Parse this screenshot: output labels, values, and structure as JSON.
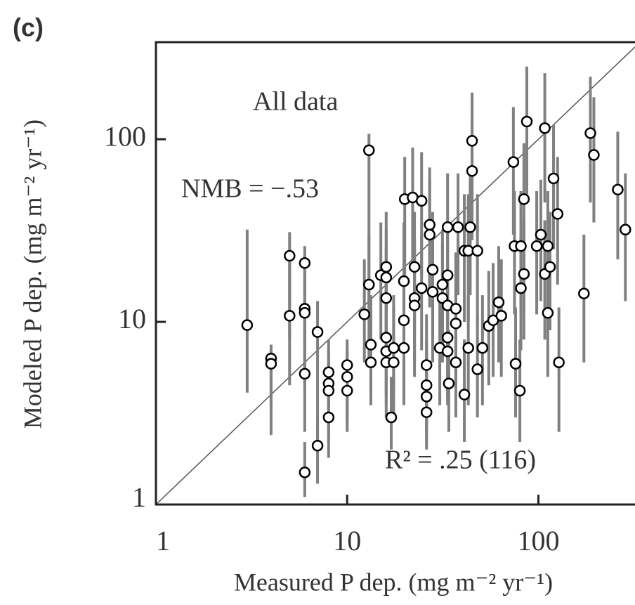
{
  "chart_data": {
    "type": "scatter",
    "panel_label": "(c)",
    "xlabel": "Measured P dep. (mg m⁻² yr⁻¹)",
    "ylabel": "Modeled P dep. (mg m⁻² yr⁻¹)",
    "annotations": [
      "All data",
      "NMB = −.53",
      "R² = .25 (116)"
    ],
    "log_x": true,
    "log_y": true,
    "xlim": [
      1,
      320
    ],
    "ylim": [
      1,
      340
    ],
    "xticks": [
      1,
      10,
      100
    ],
    "yticks": [
      1,
      10,
      100
    ],
    "marker_color": "#000000",
    "error_color": "#808080",
    "reference_line_color": "#555555",
    "x": [
      3,
      4,
      4,
      5,
      5,
      6,
      6,
      6,
      6,
      6,
      7,
      7,
      8,
      8,
      8,
      8,
      10,
      10,
      10,
      12.3,
      13,
      13,
      13.3,
      13.3,
      15,
      16,
      16,
      16,
      16,
      16,
      16,
      17,
      17.5,
      17.5,
      19.8,
      19.8,
      19.8,
      20,
      22,
      22.5,
      22.5,
      22.5,
      24.5,
      24.5,
      26,
      26,
      26,
      26,
      27,
      27,
      28,
      28,
      30.5,
      31.5,
      31.5,
      33.5,
      33.5,
      33.5,
      33.5,
      33.5,
      34,
      37,
      37,
      37,
      38,
      41,
      41,
      43,
      43,
      44,
      45,
      45,
      48,
      48,
      51,
      55,
      58,
      62,
      64,
      74,
      75,
      76,
      80,
      81,
      81,
      84,
      84,
      87,
      98,
      103,
      108,
      108,
      112,
      115,
      112,
      120,
      126,
      128,
      173,
      187,
      195,
      260,
      285
    ],
    "values": [
      9.6,
      6.3,
      5.9,
      23,
      10.8,
      21,
      11.8,
      11.2,
      5.2,
      1.5,
      8.8,
      2.1,
      5.3,
      4.6,
      4.2,
      3.0,
      5.8,
      5.0,
      4.2,
      11,
      87,
      16,
      7.5,
      6.0,
      18,
      20,
      17.5,
      13.5,
      8.2,
      6.9,
      6.0,
      3.0,
      7.2,
      6.0,
      16.7,
      10.2,
      7.2,
      47,
      48,
      20,
      13.5,
      12.3,
      46,
      15.3,
      5.8,
      4.5,
      3.9,
      3.2,
      34,
      30,
      19.3,
      14.6,
      7.2,
      16,
      13.5,
      33,
      18,
      12.3,
      8.2,
      6.9,
      4.6,
      11.8,
      9.8,
      6.0,
      33,
      24.5,
      4.0,
      24.5,
      7.2,
      33,
      98,
      67,
      24.5,
      5.5,
      7.2,
      9.5,
      10.2,
      12.8,
      10.8,
      75,
      26,
      5.9,
      4.2,
      26,
      15.3,
      18.3,
      47,
      125,
      26,
      30,
      115,
      18.3,
      26,
      20,
      11.2,
      61,
      39,
      6,
      14.3,
      108,
      82,
      53,
      32
    ],
    "y_low": [
      4.1,
      2.4,
      3.5,
      8,
      4.5,
      8,
      5,
      4.5,
      2.5,
      1.1,
      2,
      1.3,
      3,
      2.5,
      2.2,
      1.8,
      3,
      2.8,
      2.5,
      6,
      12,
      6,
      4,
      3.5,
      8,
      9,
      8,
      6,
      4,
      3.5,
      3,
      2,
      4,
      3,
      8,
      5,
      3.5,
      18,
      20,
      9,
      6,
      5,
      18,
      7,
      3,
      2.5,
      2.2,
      2,
      14,
      12,
      8,
      6,
      3.5,
      7,
      6,
      14,
      8,
      5,
      4,
      3.5,
      2.5,
      5,
      4.5,
      3,
      14,
      10,
      2.2,
      10,
      3.5,
      14,
      40,
      28,
      10,
      3,
      3.5,
      4.5,
      5,
      6,
      5,
      30,
      11,
      3,
      2.2,
      11,
      7,
      8,
      20,
      50,
      11,
      13,
      45,
      8,
      11,
      9,
      5,
      25,
      16,
      2.5,
      6,
      45,
      35,
      22,
      13
    ],
    "y_high": [
      32,
      7.5,
      7,
      31,
      22,
      26,
      20,
      18,
      9,
      2.2,
      13,
      3,
      8,
      7,
      6,
      5,
      8,
      7,
      6,
      22,
      107,
      30,
      14,
      11,
      35,
      40,
      32,
      25,
      15,
      12,
      11,
      5,
      14,
      12,
      35,
      20,
      14,
      80,
      90,
      40,
      28,
      25,
      85,
      30,
      11,
      8,
      7,
      6,
      70,
      60,
      40,
      30,
      14,
      32,
      27,
      65,
      36,
      25,
      16,
      14,
      9,
      24,
      20,
      12,
      65,
      50,
      8,
      50,
      14,
      65,
      180,
      130,
      50,
      11,
      14,
      19,
      21,
      26,
      22,
      150,
      52,
      12,
      8,
      52,
      30,
      36,
      95,
      250,
      52,
      60,
      230,
      36,
      52,
      40,
      22,
      120,
      80,
      12,
      30,
      220,
      170,
      110,
      65
    ]
  }
}
